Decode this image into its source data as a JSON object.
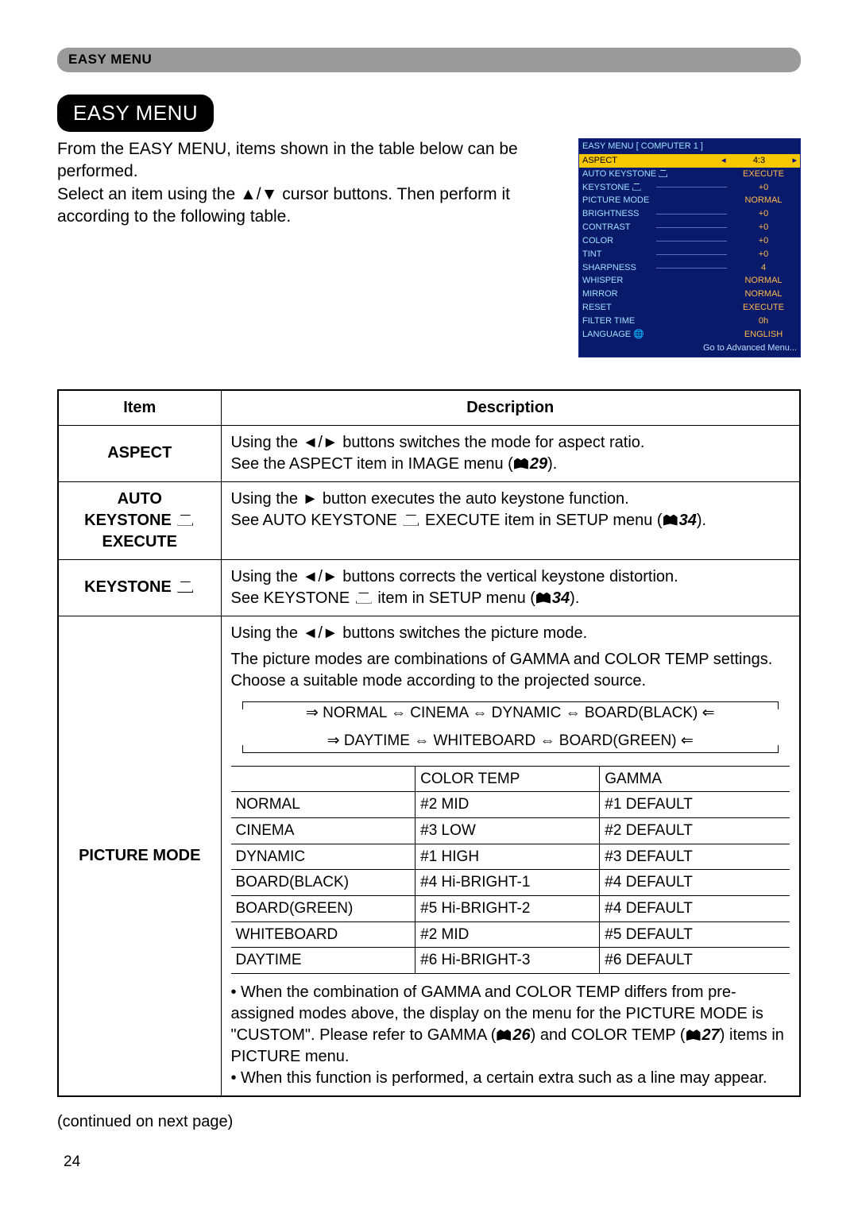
{
  "breadcrumb": "EASY MENU",
  "title": "EASY MENU",
  "intro": {
    "line1": "From the EASY MENU, items shown in the table below can be performed.",
    "line2a": "Select an item using the ",
    "line2b": " cursor buttons. Then perform it according to the following table.",
    "arrows_ud": "▲/▼"
  },
  "osd": {
    "title": "EASY MENU [ COMPUTER 1 ]",
    "rows": [
      {
        "label": "ASPECT",
        "val": "4:3",
        "sel": true,
        "arrows": true
      },
      {
        "label": "AUTO KEYSTONE",
        "icon": true,
        "val": "EXECUTE"
      },
      {
        "label": "KEYSTONE",
        "icon": true,
        "slider": true,
        "val": "+0"
      },
      {
        "label": "PICTURE MODE",
        "val": "NORMAL"
      },
      {
        "label": "BRIGHTNESS",
        "slider": true,
        "val": "+0"
      },
      {
        "label": "CONTRAST",
        "slider": true,
        "val": "+0"
      },
      {
        "label": "COLOR",
        "slider": true,
        "val": "+0"
      },
      {
        "label": "TINT",
        "slider": true,
        "val": "+0"
      },
      {
        "label": "SHARPNESS",
        "slider": true,
        "val": "4"
      },
      {
        "label": "WHISPER",
        "val": "NORMAL"
      },
      {
        "label": "MIRROR",
        "val": "NORMAL"
      },
      {
        "label": "RESET",
        "val": "EXECUTE"
      },
      {
        "label": "FILTER TIME",
        "val": "0h"
      },
      {
        "label": "LANGUAGE",
        "globe": true,
        "val": "ENGLISH"
      }
    ],
    "foot": "Go to Advanced Menu..."
  },
  "headers": {
    "item": "Item",
    "desc": "Description"
  },
  "rows": {
    "aspect": {
      "label": "ASPECT",
      "d1a": "Using the ",
      "d1b": " buttons switches the mode for aspect ratio.",
      "d2a": "See the ASPECT item in IMAGE menu (",
      "d2ref": "29",
      "d2b": ")."
    },
    "auto_keystone": {
      "label1": "AUTO",
      "label2": "KEYSTONE ",
      "label3": "EXECUTE",
      "d1a": "Using the ",
      "d1b": " button executes the auto keystone function.",
      "d2a": "See AUTO KEYSTONE ",
      "d2b": " EXECUTE item in SETUP menu (",
      "d2ref": "34",
      "d2c": ")."
    },
    "keystone": {
      "label": "KEYSTONE ",
      "d1a": "Using the ",
      "d1b": " buttons corrects the vertical keystone distortion.",
      "d2a": "See KEYSTONE ",
      "d2b": " item in SETUP menu (",
      "d2ref": "34",
      "d2c": ")."
    },
    "picture_mode": {
      "label": "PICTURE MODE",
      "p1a": "Using the ",
      "p1b": " buttons switches the picture mode.",
      "p2": "The picture modes are combinations of GAMMA and COLOR TEMP settings. Choose a suitable mode according to the projected source.",
      "flow1": "NORMAL ⇔ CINEMA ⇔ DYNAMIC ⇔ BOARD(BLACK)",
      "flow2": "DAYTIME ⇔ WHITEBOARD ⇔ BOARD(GREEN)",
      "table": {
        "h1": "",
        "h2": "COLOR TEMP",
        "h3": "GAMMA",
        "rows": [
          [
            "NORMAL",
            "#2 MID",
            "#1 DEFAULT"
          ],
          [
            "CINEMA",
            "#3 LOW",
            "#2 DEFAULT"
          ],
          [
            "DYNAMIC",
            "#1 HIGH",
            "#3 DEFAULT"
          ],
          [
            "BOARD(BLACK)",
            "#4 Hi-BRIGHT-1",
            "#4 DEFAULT"
          ],
          [
            "BOARD(GREEN)",
            "#5 Hi-BRIGHT-2",
            "#4 DEFAULT"
          ],
          [
            "WHITEBOARD",
            "#2 MID",
            "#5 DEFAULT"
          ],
          [
            "DAYTIME",
            "#6 Hi-BRIGHT-3",
            "#6 DEFAULT"
          ]
        ]
      },
      "note1a": "• When the combination of GAMMA and COLOR TEMP differs from pre-assigned modes above, the display on the menu for the PICTURE MODE is \"CUSTOM\". Please refer to GAMMA (",
      "note1ref1": "26",
      "note1b": ") and COLOR TEMP (",
      "note1ref2": "27",
      "note1c": ") items in PICTURE menu.",
      "note2": "• When this function is performed, a certain extra such as a line may appear."
    }
  },
  "arrows_lr": "◄/►",
  "arrow_r": "►",
  "continued": "(continued on next page)",
  "page_num": "24"
}
